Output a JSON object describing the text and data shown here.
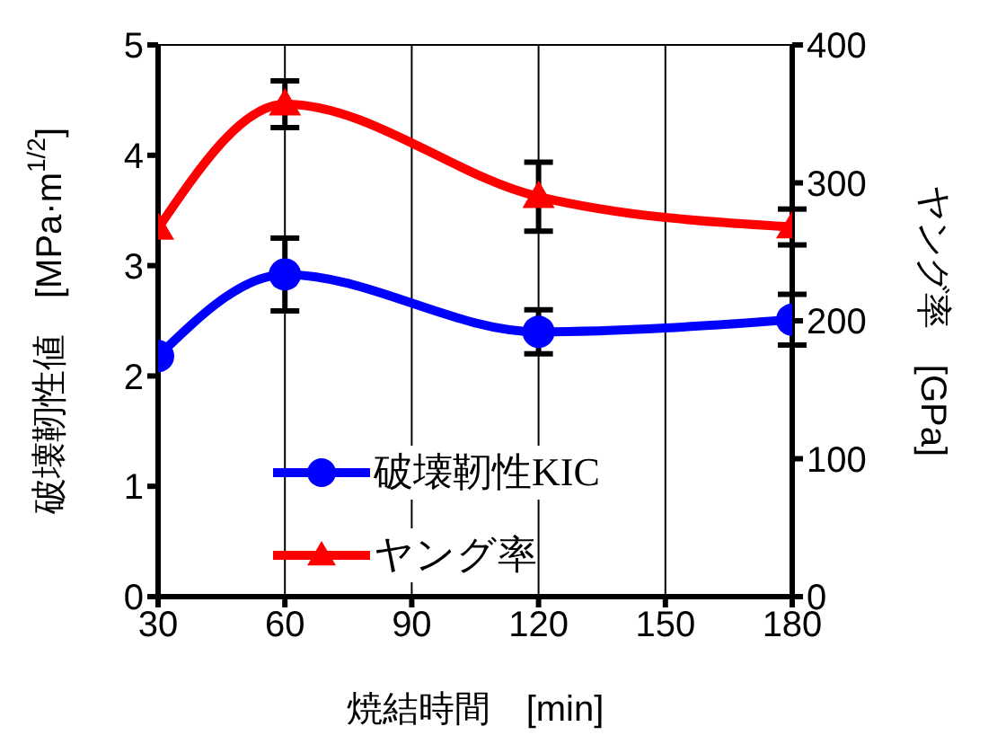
{
  "chart_data": {
    "type": "line",
    "xlabel": "焼結時間　[min]",
    "ylabel": "破壊靭性値　[MPa·m$^{1/2}$]",
    "y2label": "ヤング率　[GPa]",
    "x": [
      30,
      60,
      120,
      180
    ],
    "series": [
      {
        "name": "破壊靭性KIC",
        "color": "#0000ff",
        "marker": "circle",
        "values": [
          2.18,
          2.92,
          2.4,
          2.51
        ],
        "errors": [
          null,
          0.33,
          0.2,
          0.23
        ]
      },
      {
        "name": "ヤング率",
        "color": "#ff0000",
        "marker": "triangle",
        "axis": "y2",
        "values": [
          267,
          357,
          290,
          268
        ],
        "errors": [
          null,
          17,
          25,
          13
        ]
      }
    ],
    "xlim": [
      30,
      180
    ],
    "xticks": [
      30,
      60,
      90,
      120,
      150,
      180
    ],
    "ylim": [
      0,
      5
    ],
    "yticks": [
      0,
      1,
      2,
      3,
      4,
      5
    ],
    "y2lim": [
      0,
      400
    ],
    "y2ticks": [
      0,
      100,
      200,
      300,
      400
    ],
    "grid": true,
    "legend": "bottom",
    "line_style": "solid"
  }
}
